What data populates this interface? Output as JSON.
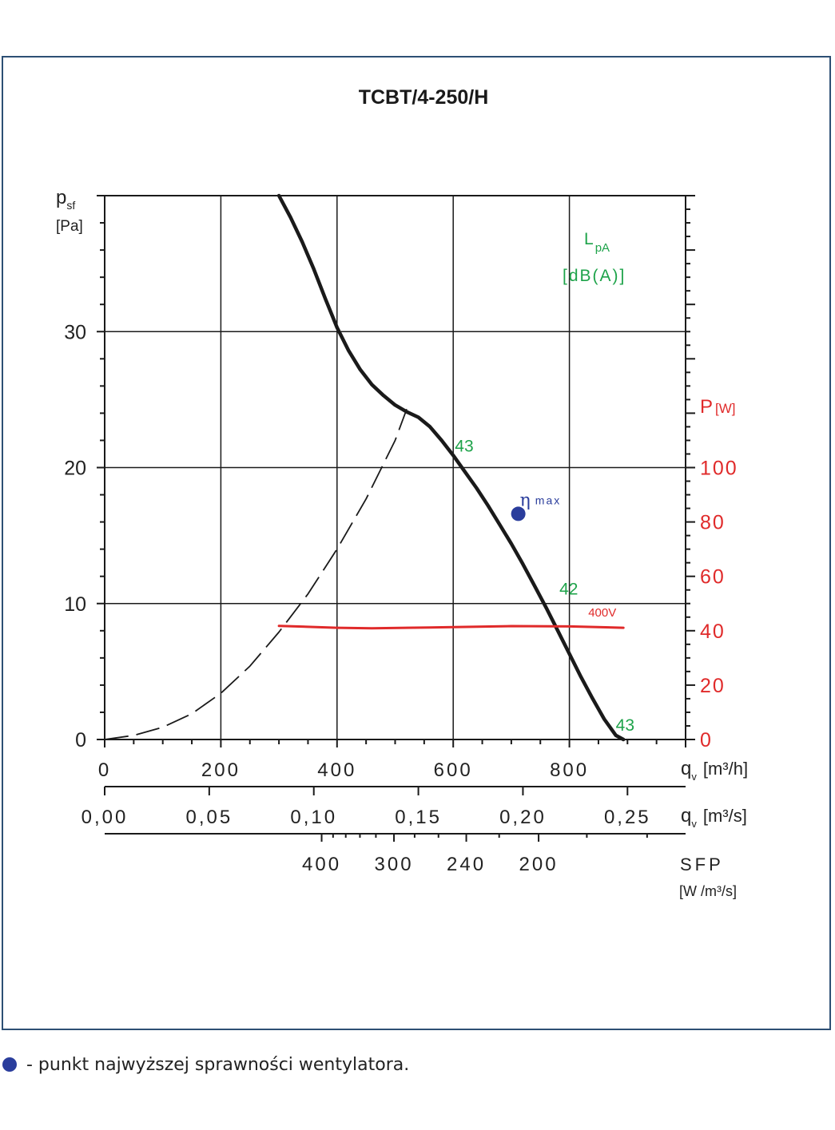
{
  "colors": {
    "frame": "#2d4f74",
    "curve": "#1a1a1a",
    "power": "#e02a2a",
    "noise": "#1ea34a",
    "efficiency_point": "#2a3d9c"
  },
  "chart_data": {
    "type": "line",
    "title": "TCBT/4-250/H",
    "y_axis": {
      "label": "p",
      "label_sub": "sf",
      "unit": "[Pa]",
      "range": [
        0,
        40
      ],
      "ticks": [
        "0",
        "10",
        "20",
        "30"
      ]
    },
    "y2_axis": {
      "label": "P",
      "unit": "[W]",
      "range": [
        0,
        200
      ],
      "ticks": [
        "0",
        "20",
        "40",
        "60",
        "80",
        "100"
      ]
    },
    "x_axis_m3h": {
      "label": "q",
      "label_sub": "v",
      "unit": "[m³/h]",
      "range": [
        0,
        1000
      ],
      "ticks": [
        "0",
        "200",
        "400",
        "600",
        "800"
      ]
    },
    "x_axis_m3s": {
      "label": "q",
      "label_sub": "v",
      "unit": "[m³/s]",
      "ticks": [
        "0,00",
        "0,05",
        "0,10",
        "0,15",
        "0,20",
        "0,25"
      ]
    },
    "sfp_axis": {
      "label": "SFP",
      "unit": "[W /m³/s]",
      "ticks": [
        "400",
        "300",
        "240",
        "200"
      ]
    },
    "noise_label": {
      "line1": "L",
      "line1_sub": "pA",
      "line2": "[dB(A)]"
    },
    "series": [
      {
        "role": "fan_curve",
        "x": [
          300,
          320,
          340,
          360,
          380,
          400,
          420,
          440,
          460,
          480,
          500,
          520,
          540,
          560,
          580,
          600,
          620,
          640,
          660,
          680,
          700,
          720,
          740,
          760,
          780,
          800,
          820,
          840,
          860,
          880,
          893
        ],
        "y": [
          40,
          38.4,
          36.6,
          34.6,
          32.4,
          30.3,
          28.6,
          27.2,
          26.1,
          25.3,
          24.6,
          24.1,
          23.7,
          23.0,
          22.0,
          20.9,
          19.7,
          18.5,
          17.2,
          15.8,
          14.4,
          12.9,
          11.3,
          9.7,
          8.0,
          6.3,
          4.6,
          3.0,
          1.5,
          0.3,
          0
        ]
      },
      {
        "role": "system_curve",
        "style": "dashed",
        "x": [
          0,
          50,
          100,
          150,
          200,
          250,
          300,
          350,
          400,
          450,
          500,
          520
        ],
        "y": [
          0,
          0.3,
          0.9,
          1.9,
          3.4,
          5.4,
          7.9,
          10.7,
          14.0,
          17.7,
          22.0,
          24.3
        ]
      },
      {
        "name": "400V",
        "role": "power",
        "axis": "y2",
        "x": [
          300,
          400,
          460,
          560,
          700,
          800,
          893
        ],
        "y": [
          41.8,
          41.1,
          40.9,
          41.2,
          41.7,
          41.6,
          41.1
        ]
      }
    ],
    "noise_labels": [
      {
        "text": "43",
        "x": 640,
        "y": 22.1
      },
      {
        "text": "42",
        "x": 820,
        "y": 11.6
      },
      {
        "text": "43",
        "x": 917,
        "y": 1.6
      }
    ],
    "efficiency_max": {
      "symbol": "η",
      "sub": "max",
      "x": 712,
      "y": 16.6
    },
    "grid": true
  },
  "footer": {
    "note": "- punkt najwyższej sprawności wentylatora."
  }
}
